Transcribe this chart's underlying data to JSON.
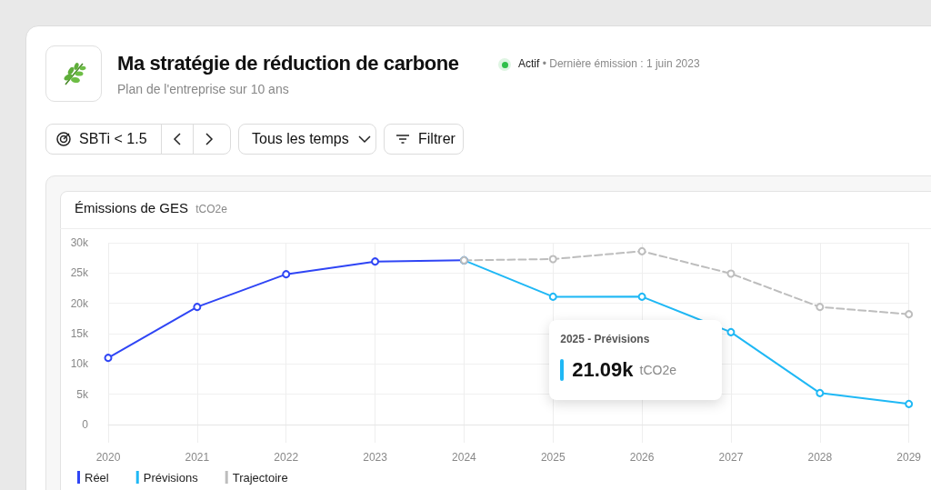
{
  "chart_data": {
    "type": "line",
    "title": "Émissions de GES",
    "ylabel": "tCO2e",
    "annotations": [
      "Ma stratégie de réduction de carbone",
      "Actif",
      "• Dernière émission : 1 juin 2023",
      "Plan de l'entreprise sur 10 ans",
      "SBTi < 1.5",
      "Tous les temps",
      "Filtrer",
      {
        "text": "2025 - Prévisions\n21.09k tCO2e",
        "x": "2025",
        "y": 21090
      }
    ],
    "categories": [
      "2020",
      "2021",
      "2022",
      "2023",
      "2024",
      "2025",
      "2026",
      "2027",
      "2028",
      "2029"
    ],
    "series": [
      {
        "name": "Réel",
        "color": "#2f45f5",
        "values": [
          11000,
          19400,
          24800,
          26900,
          27100,
          null,
          null,
          null,
          null,
          null
        ]
      },
      {
        "name": "Prévisions",
        "color": "#1fb8f5",
        "values": [
          null,
          null,
          null,
          null,
          27100,
          21090,
          21100,
          15250,
          5200,
          3400
        ]
      },
      {
        "name": "Trajectoire",
        "color": "#bdbdbd",
        "line_style": "dashed",
        "values": [
          null,
          null,
          null,
          null,
          27100,
          27300,
          28600,
          24900,
          19400,
          18200
        ]
      }
    ],
    "ylim": [
      -3000,
      30000
    ],
    "yticks": [
      {
        "value": 0,
        "label": "0"
      },
      {
        "value": 5000,
        "label": "5k"
      },
      {
        "value": 10000,
        "label": "10k"
      },
      {
        "value": 15000,
        "label": "15k"
      },
      {
        "value": 20000,
        "label": "20k"
      },
      {
        "value": 25000,
        "label": "25k"
      },
      {
        "value": 30000,
        "label": "30k"
      }
    ],
    "grid": true,
    "legend": "bottom left",
    "marker": "circle",
    "line_style": "solid"
  }
}
